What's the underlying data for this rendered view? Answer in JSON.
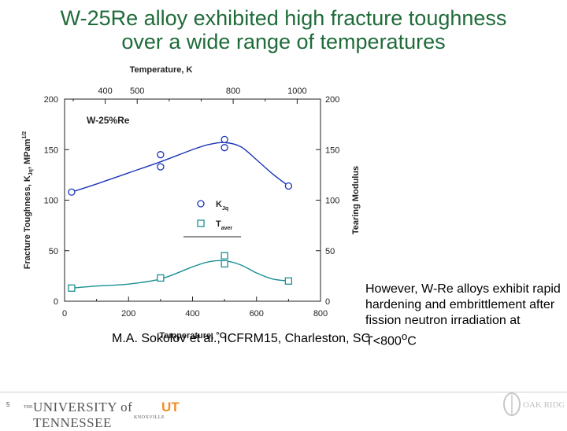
{
  "slide": {
    "title_line1": "W-25Re alloy exhibited high fracture toughness",
    "title_line2": "over a wide range of temperatures",
    "note": "However, W-Re alloys exhibit rapid hardening and embrittlement after fission neutron irradiation at T<800",
    "note_sup": "o",
    "note_unit": "C",
    "citation": "M.A. Sokolov et al., ICFRM15, Charleston, SC",
    "page_number": "5",
    "footer_logo_small": "THE",
    "footer_logo_main": "UNIVERSITY of TENNESSEE",
    "footer_logo_ut": "UT",
    "footer_logo_sub": "KNOXVILLE",
    "footer_logo_right": "OAK RIDGE"
  },
  "chart_data": {
    "type": "line",
    "panel_label": "W-25%Re",
    "xlabel": "Temperature, °C",
    "top_xlabel": "Temperature,  K",
    "ylabel_left": "Fracture Toughness, K",
    "ylabel_left_sub": "Jq",
    "ylabel_left_unit": ",  MPam",
    "ylabel_left_sup": "1/2",
    "ylabel_right": "Tearing Modulus",
    "xlim": [
      0,
      800
    ],
    "ylim": [
      0,
      200
    ],
    "x_ticks": [
      0,
      200,
      400,
      600,
      800
    ],
    "y_ticks": [
      0,
      50,
      100,
      150,
      200
    ],
    "top_ticks": [
      400,
      500,
      800,
      1000
    ],
    "legend_placement": "center",
    "series": [
      {
        "name": "K_Jq",
        "legend_label": "K",
        "legend_sub": "Jq",
        "color": "#1a35b8",
        "marker": "circle",
        "x": [
          22,
          300,
          300,
          500,
          500,
          700
        ],
        "y": [
          108,
          145,
          133,
          160,
          152,
          114
        ],
        "fit_x": [
          22,
          100,
          200,
          300,
          400,
          450,
          500,
          550,
          600,
          650,
          700
        ],
        "fit_y": [
          108,
          116,
          127,
          138,
          150,
          155,
          157,
          153,
          140,
          126,
          114
        ]
      },
      {
        "name": "T_aver",
        "legend_label": "T",
        "legend_sub": "aver",
        "color": "#1a8f96",
        "marker": "square",
        "x": [
          22,
          300,
          500,
          500,
          700
        ],
        "y": [
          13,
          23,
          45,
          37,
          20
        ],
        "fit_x": [
          22,
          100,
          200,
          300,
          400,
          450,
          500,
          550,
          600,
          650,
          700
        ],
        "fit_y": [
          13,
          15,
          17,
          22,
          34,
          39,
          40,
          36,
          28,
          22,
          20
        ]
      }
    ]
  }
}
